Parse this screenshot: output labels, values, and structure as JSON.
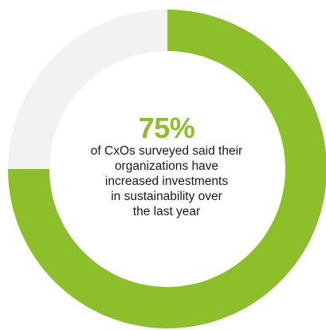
{
  "chart_data": {
    "type": "pie",
    "title": "",
    "slices": [
      {
        "label": "",
        "value": 75,
        "color": "#8cbf2a"
      },
      {
        "label": "",
        "value": 25,
        "color": "#f2f2f2"
      }
    ],
    "donut": true
  },
  "center": {
    "value_text": "75%",
    "value_color": "#8cbf2a",
    "caption_lines": [
      "of CxOs surveyed said their",
      "organizations have",
      "increased investments",
      "in sustainability over",
      "the last year"
    ]
  }
}
